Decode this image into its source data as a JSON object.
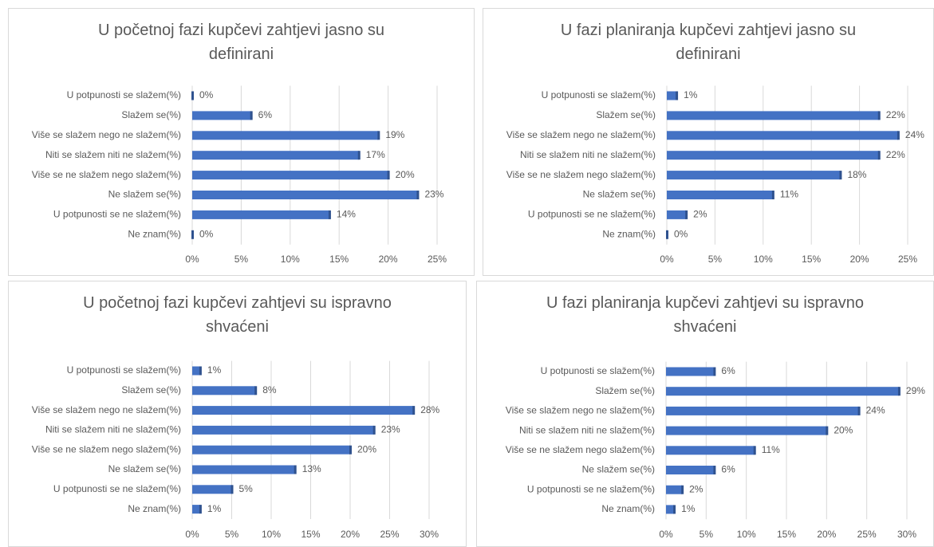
{
  "chart_data": [
    {
      "type": "barh",
      "title": "U početnoj fazi kupčevi zahtjevi jasno su definirani",
      "categories": [
        "U potpunosti se slažem(%)",
        "Slažem se(%)",
        "Više se slažem nego ne slažem(%)",
        "Niti se slažem niti ne slažem(%)",
        "Više se ne slažem nego slažem(%)",
        "Ne slažem se(%)",
        "U potpunosti se ne slažem(%)",
        "Ne znam(%)"
      ],
      "values": [
        0,
        6,
        19,
        17,
        20,
        23,
        14,
        0
      ],
      "value_labels": [
        "0%",
        "6%",
        "19%",
        "17%",
        "20%",
        "23%",
        "14%",
        "0%"
      ],
      "color": "#4472c4",
      "grid": true,
      "xlim": [
        0,
        25
      ],
      "xticks": [
        {
          "value": 0,
          "label": "0%"
        },
        {
          "value": 5,
          "label": "5%"
        },
        {
          "value": 10,
          "label": "10%"
        },
        {
          "value": 15,
          "label": "15%"
        },
        {
          "value": 20,
          "label": "20%"
        },
        {
          "value": 25,
          "label": "25%"
        }
      ]
    },
    {
      "type": "barh",
      "title": "U fazi planiranja kupčevi zahtjevi jasno su definirani",
      "categories": [
        "U potpunosti se slažem(%)",
        "Slažem se(%)",
        "Više se slažem nego ne slažem(%)",
        "Niti se slažem niti ne slažem(%)",
        "Više se ne slažem nego slažem(%)",
        "Ne slažem se(%)",
        "U potpunosti se ne slažem(%)",
        "Ne znam(%)"
      ],
      "values": [
        1,
        22,
        24,
        22,
        18,
        11,
        2,
        0
      ],
      "value_labels": [
        "1%",
        "22%",
        "24%",
        "22%",
        "18%",
        "11%",
        "2%",
        "0%"
      ],
      "color": "#4472c4",
      "grid": true,
      "xlim": [
        0,
        25
      ],
      "xticks": [
        {
          "value": 0,
          "label": "0%"
        },
        {
          "value": 5,
          "label": "5%"
        },
        {
          "value": 10,
          "label": "10%"
        },
        {
          "value": 15,
          "label": "15%"
        },
        {
          "value": 20,
          "label": "20%"
        },
        {
          "value": 25,
          "label": "25%"
        }
      ]
    },
    {
      "type": "barh",
      "title": "U početnoj fazi kupčevi zahtjevi su ispravno shvaćeni",
      "categories": [
        "U potpunosti se slažem(%)",
        "Slažem se(%)",
        "Više se slažem nego ne slažem(%)",
        "Niti se slažem niti ne slažem(%)",
        "Više se ne slažem nego slažem(%)",
        "Ne slažem se(%)",
        "U potpunosti se ne slažem(%)",
        "Ne znam(%)"
      ],
      "values": [
        1,
        8,
        28,
        23,
        20,
        13,
        5,
        1
      ],
      "value_labels": [
        "1%",
        "8%",
        "28%",
        "23%",
        "20%",
        "13%",
        "5%",
        "1%"
      ],
      "color": "#4472c4",
      "grid": true,
      "xlim": [
        0,
        30
      ],
      "xticks": [
        {
          "value": 0,
          "label": "0%"
        },
        {
          "value": 5,
          "label": "5%"
        },
        {
          "value": 10,
          "label": "10%"
        },
        {
          "value": 15,
          "label": "15%"
        },
        {
          "value": 20,
          "label": "20%"
        },
        {
          "value": 25,
          "label": "25%"
        },
        {
          "value": 30,
          "label": "30%"
        }
      ]
    },
    {
      "type": "barh",
      "title": "U fazi planiranja kupčevi zahtjevi su ispravno shvaćeni",
      "categories": [
        "U potpunosti se slažem(%)",
        "Slažem se(%)",
        "Više se slažem nego ne slažem(%)",
        "Niti se slažem niti ne slažem(%)",
        "Više se ne slažem nego slažem(%)",
        "Ne slažem se(%)",
        "U potpunosti se ne slažem(%)",
        "Ne znam(%)"
      ],
      "values": [
        6,
        29,
        24,
        20,
        11,
        6,
        2,
        1
      ],
      "value_labels": [
        "6%",
        "29%",
        "24%",
        "20%",
        "11%",
        "6%",
        "2%",
        "1%"
      ],
      "color": "#4472c4",
      "grid": true,
      "xlim": [
        0,
        30
      ],
      "xticks": [
        {
          "value": 0,
          "label": "0%"
        },
        {
          "value": 5,
          "label": "5%"
        },
        {
          "value": 10,
          "label": "10%"
        },
        {
          "value": 15,
          "label": "15%"
        },
        {
          "value": 20,
          "label": "20%"
        },
        {
          "value": 25,
          "label": "25%"
        },
        {
          "value": 30,
          "label": "30%"
        }
      ]
    }
  ]
}
